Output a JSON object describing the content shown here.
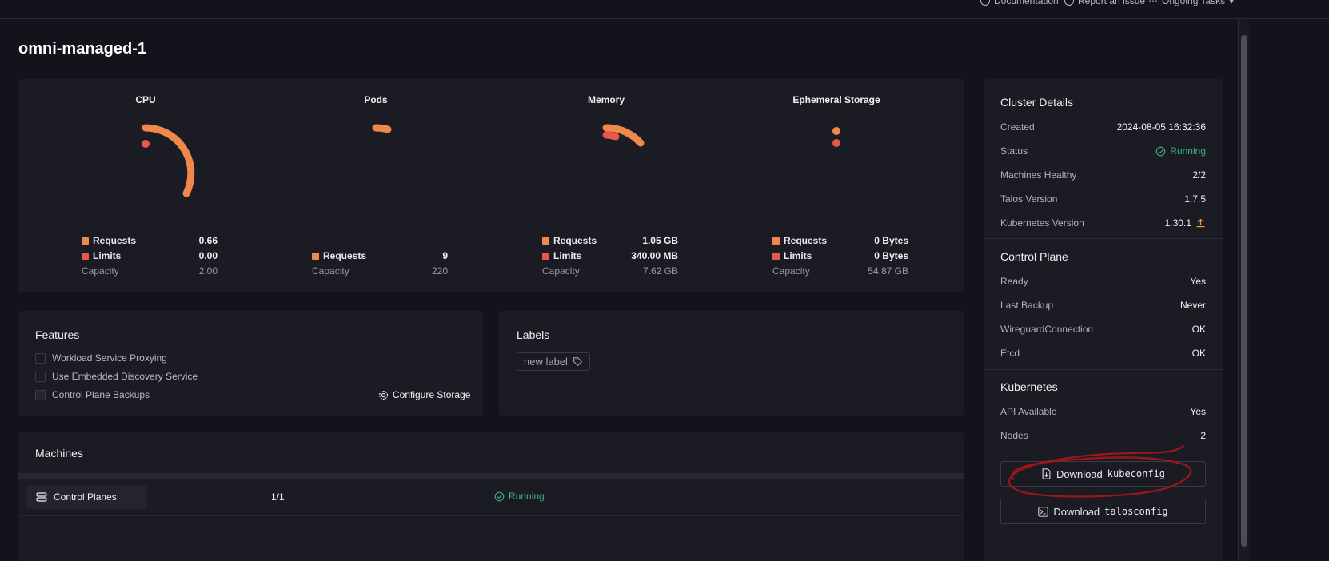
{
  "topbar": {
    "documentation": "Documentation",
    "report_issue": "Report an issue",
    "ongoing_tasks": "Ongoing Tasks"
  },
  "page": {
    "title": "omni-managed-1"
  },
  "colors": {
    "requests": "#f0884d",
    "limits": "#e8584a",
    "running": "#3fb27f",
    "upgrade": "#f0a030"
  },
  "gauges": [
    {
      "title": "CPU",
      "requests_label": "Requests",
      "requests_value": "0.66",
      "limits_label": "Limits",
      "limits_value": "0.00",
      "capacity_label": "Capacity",
      "capacity_value": "2.00",
      "requests_fraction": 0.33,
      "limits_fraction": 0.0
    },
    {
      "title": "Pods",
      "requests_label": "Requests",
      "requests_value": "9",
      "capacity_label": "Capacity",
      "capacity_value": "220",
      "requests_fraction": 0.041
    },
    {
      "title": "Memory",
      "requests_label": "Requests",
      "requests_value": "1.05 GB",
      "limits_label": "Limits",
      "limits_value": "340.00 MB",
      "capacity_label": "Capacity",
      "capacity_value": "7.62 GB",
      "requests_fraction": 0.138,
      "limits_fraction": 0.045
    },
    {
      "title": "Ephemeral Storage",
      "requests_label": "Requests",
      "requests_value": "0 Bytes",
      "limits_label": "Limits",
      "limits_value": "0 Bytes",
      "capacity_label": "Capacity",
      "capacity_value": "54.87 GB",
      "requests_fraction": 0.0,
      "limits_fraction": 0.0
    }
  ],
  "features": {
    "title": "Features",
    "items": [
      "Workload Service Proxying",
      "Use Embedded Discovery Service",
      "Control Plane Backups"
    ],
    "configure_storage": "Configure Storage"
  },
  "labels": {
    "title": "Labels",
    "new_label": "new label"
  },
  "machines": {
    "title": "Machines",
    "row": {
      "name": "Control Planes",
      "count": "1/1",
      "status": "Running"
    }
  },
  "cluster_details": {
    "title": "Cluster Details",
    "rows": [
      {
        "k": "Created",
        "v": "2024-08-05 16:32:36"
      },
      {
        "k": "Status",
        "v": "Running"
      },
      {
        "k": "Machines Healthy",
        "v": "2/2"
      },
      {
        "k": "Talos Version",
        "v": "1.7.5"
      },
      {
        "k": "Kubernetes Version",
        "v": "1.30.1"
      }
    ]
  },
  "control_plane": {
    "title": "Control Plane",
    "rows": [
      {
        "k": "Ready",
        "v": "Yes"
      },
      {
        "k": "Last Backup",
        "v": "Never"
      },
      {
        "k": "WireguardConnection",
        "v": "OK"
      },
      {
        "k": "Etcd",
        "v": "OK"
      }
    ]
  },
  "kubernetes": {
    "title": "Kubernetes",
    "rows": [
      {
        "k": "API Available",
        "v": "Yes"
      },
      {
        "k": "Nodes",
        "v": "2"
      }
    ]
  },
  "downloads": {
    "download_word": "Download",
    "kubeconfig": "kubeconfig",
    "talosconfig": "talosconfig"
  }
}
